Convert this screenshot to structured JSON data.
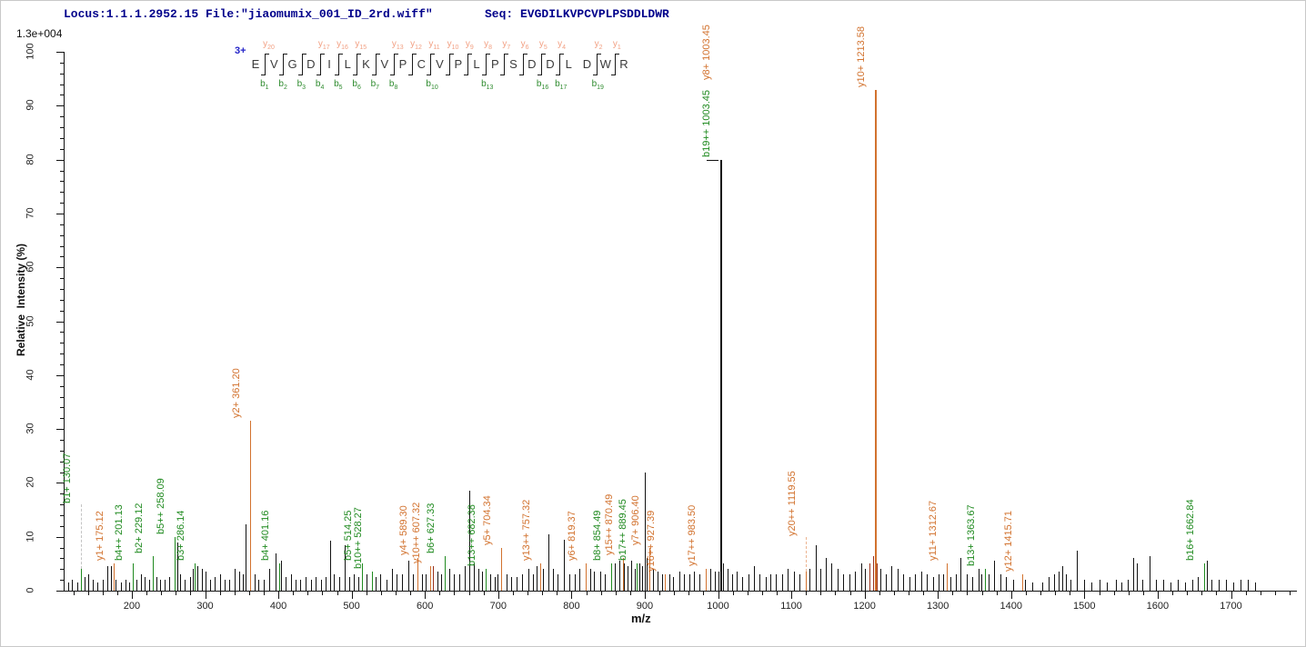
{
  "header": {
    "locus_file": "Locus:1.1.1.2952.15 File:\"jiaomumix_001_ID_2rd.wiff\"",
    "seq_text": "Seq: EVGDILKVPCVPLPSDDLDWR"
  },
  "colors": {
    "b_ion": "#1f8a1f",
    "y_ion": "#d2722e",
    "y_annotation": "#f2a083",
    "b_annotation": "#2e8b2e",
    "peak_black": "#111111",
    "peak_overlap": "#99301a",
    "header_navy": "#00008b",
    "dash_gray": "#c4c4c4",
    "dash_orange": "#ecb491"
  },
  "chart_data": {
    "type": "bar",
    "subtype": "ms2-stick-spectrum",
    "title": "",
    "xlabel": "m/z",
    "ylabel": "Relative  Intensity (%)",
    "y_axis_scale_label": "1.3e+004",
    "xlim": [
      107,
      1790
    ],
    "ylim": [
      0,
      100
    ],
    "x_major_ticks": [
      200,
      300,
      400,
      500,
      600,
      700,
      800,
      900,
      1000,
      1100,
      1200,
      1300,
      1400,
      1500,
      1600,
      1700
    ],
    "x_minor_step": 20,
    "y_major_ticks": [
      0,
      10,
      20,
      30,
      40,
      50,
      60,
      70,
      80,
      90,
      100
    ],
    "y_minor_step": 2,
    "grid": false,
    "precursor": {
      "charge": "3+",
      "sequence": "EVGDILKVPCVPLPSDDLDWR"
    },
    "fragment_map": {
      "residues": [
        "E",
        "V",
        "G",
        "D",
        "I",
        "L",
        "K",
        "V",
        "P",
        "C",
        "V",
        "P",
        "L",
        "P",
        "S",
        "D",
        "D",
        "L",
        "D",
        "W",
        "R"
      ],
      "cleavages": [
        {
          "after": 1,
          "b": 1,
          "y": 20
        },
        {
          "after": 2,
          "b": 2
        },
        {
          "after": 3,
          "b": 3
        },
        {
          "after": 4,
          "b": 4,
          "y": 17
        },
        {
          "after": 5,
          "b": 5,
          "y": 16
        },
        {
          "after": 6,
          "b": 6,
          "y": 15
        },
        {
          "after": 7,
          "b": 7
        },
        {
          "after": 8,
          "b": 8,
          "y": 13
        },
        {
          "after": 9,
          "y": 12
        },
        {
          "after": 10,
          "b": 10,
          "y": 11
        },
        {
          "after": 11,
          "y": 10
        },
        {
          "after": 12,
          "y": 9
        },
        {
          "after": 13,
          "b": 13,
          "y": 8
        },
        {
          "after": 14,
          "y": 7
        },
        {
          "after": 15,
          "y": 6
        },
        {
          "after": 16,
          "b": 16,
          "y": 5
        },
        {
          "after": 17,
          "b": 17,
          "y": 4
        },
        {
          "after": 19,
          "b": 19,
          "y": 2
        },
        {
          "after": 20,
          "y": 1
        }
      ]
    },
    "labeled_peaks": [
      {
        "mz": 130.07,
        "intensity": 4,
        "ion": "b",
        "label": "b1+ 130.07",
        "dashed": true,
        "label_from_pct": 16
      },
      {
        "mz": 175.12,
        "intensity": 5,
        "ion": "y",
        "label": "y1+ 175.12"
      },
      {
        "mz": 201.13,
        "intensity": 5,
        "ion": "b",
        "label": "b4++ 201.13"
      },
      {
        "mz": 229.12,
        "intensity": 6.5,
        "ion": "b",
        "label": "b2+ 229.12"
      },
      {
        "mz": 258.09,
        "intensity": 10,
        "ion": "b",
        "label": "b5++ 258.09"
      },
      {
        "mz": 286.14,
        "intensity": 5,
        "ion": "b",
        "label": "b3+ 286.14"
      },
      {
        "mz": 361.2,
        "intensity": 31.5,
        "ion": "y",
        "label": "y2+ 361.20"
      },
      {
        "mz": 401.16,
        "intensity": 5,
        "ion": "b",
        "label": "b4+ 401.16"
      },
      {
        "mz": 514.25,
        "intensity": 5,
        "ion": "b",
        "label": "b5+ 514.25"
      },
      {
        "mz": 528.27,
        "intensity": 3.5,
        "ion": "b",
        "label": "b10++ 528.27"
      },
      {
        "mz": 589.3,
        "intensity": 6,
        "ion": "y",
        "label": "y4+ 589.30"
      },
      {
        "mz": 607.32,
        "intensity": 4.5,
        "ion": "y",
        "label": "y10++ 607.32"
      },
      {
        "mz": 627.33,
        "intensity": 6.5,
        "ion": "b",
        "label": "b6+ 627.33"
      },
      {
        "mz": 682.38,
        "intensity": 4,
        "ion": "b",
        "label": "b13++ 682.38"
      },
      {
        "mz": 704.34,
        "intensity": 8,
        "ion": "y",
        "label": "y5+ 704.34"
      },
      {
        "mz": 757.32,
        "intensity": 5,
        "ion": "y",
        "label": "y13++ 757.32"
      },
      {
        "mz": 819.37,
        "intensity": 5,
        "ion": "y",
        "label": "y6+ 819.37"
      },
      {
        "mz": 854.49,
        "intensity": 5,
        "ion": "b",
        "label": "b8+ 854.49"
      },
      {
        "mz": 870.49,
        "intensity": 6,
        "ion": "y",
        "label": "y15++ 870.49"
      },
      {
        "mz": 889.45,
        "intensity": 5,
        "ion": "b",
        "label": "b17++ 889.45"
      },
      {
        "mz": 906.4,
        "intensity": 8,
        "ion": "y",
        "label": "y7+ 906.40"
      },
      {
        "mz": 927.39,
        "intensity": 3,
        "ion": "y",
        "label": "y16++ 927.39"
      },
      {
        "mz": 983.5,
        "intensity": 4,
        "ion": "y",
        "label": "y17++ 983.50"
      },
      {
        "mz": 1003.45,
        "intensity": 80,
        "ion": "b",
        "label": "b19++ 1003.45",
        "peak_color": "black",
        "cap": true
      },
      {
        "mz": 1003.45,
        "intensity": 80,
        "ion": "y",
        "label": "y8+ 1003.45",
        "draw_peak": false,
        "stack_offset": 88
      },
      {
        "mz": 1119.55,
        "intensity": 3.5,
        "ion": "y",
        "label": "y20++ 1119.55",
        "dashed": true,
        "label_from_pct": 10
      },
      {
        "mz": 1213.58,
        "intensity": 93,
        "ion": "y",
        "label": "y10+ 1213.58"
      },
      {
        "mz": 1312.67,
        "intensity": 5,
        "ion": "y",
        "label": "y11+ 1312.67"
      },
      {
        "mz": 1363.67,
        "intensity": 4,
        "ion": "b",
        "label": "b13+ 1363.67"
      },
      {
        "mz": 1415.71,
        "intensity": 3,
        "ion": "y",
        "label": "y12+ 1415.71"
      },
      {
        "mz": 1662.84,
        "intensity": 5,
        "ion": "b",
        "label": "b16+ 1662.84"
      }
    ],
    "overlap_peaks": [
      [
        611,
        4.5
      ],
      [
        1207,
        5
      ],
      [
        1211,
        6.5
      ],
      [
        1216,
        5
      ]
    ],
    "unlabeled_peaks": [
      [
        113,
        1.5
      ],
      [
        118,
        2
      ],
      [
        126,
        1.5
      ],
      [
        136,
        2.5
      ],
      [
        141,
        3
      ],
      [
        147,
        2
      ],
      [
        153,
        1.5
      ],
      [
        160,
        2
      ],
      [
        167,
        4.5
      ],
      [
        171,
        4.5
      ],
      [
        178,
        2
      ],
      [
        185,
        1.5
      ],
      [
        191,
        2
      ],
      [
        196,
        1.5
      ],
      [
        206,
        2
      ],
      [
        212,
        3
      ],
      [
        217,
        2.5
      ],
      [
        224,
        2
      ],
      [
        233,
        2.5
      ],
      [
        239,
        2
      ],
      [
        245,
        2
      ],
      [
        251,
        2.5
      ],
      [
        262,
        9
      ],
      [
        266,
        3
      ],
      [
        272,
        2
      ],
      [
        279,
        2.5
      ],
      [
        283,
        4
      ],
      [
        289,
        4.5
      ],
      [
        295,
        4
      ],
      [
        301,
        3.5
      ],
      [
        307,
        2
      ],
      [
        313,
        2.5
      ],
      [
        320,
        3
      ],
      [
        327,
        2
      ],
      [
        333,
        2
      ],
      [
        340,
        4
      ],
      [
        346,
        3.5
      ],
      [
        352,
        3
      ],
      [
        355,
        12.3
      ],
      [
        367,
        3
      ],
      [
        373,
        2
      ],
      [
        380,
        2
      ],
      [
        388,
        4
      ],
      [
        396,
        7
      ],
      [
        404,
        5.5
      ],
      [
        410,
        2.5
      ],
      [
        417,
        3
      ],
      [
        423,
        2
      ],
      [
        430,
        2
      ],
      [
        437,
        2.5
      ],
      [
        444,
        2
      ],
      [
        451,
        2.5
      ],
      [
        458,
        2
      ],
      [
        464,
        2.5
      ],
      [
        470,
        9.3
      ],
      [
        476,
        3
      ],
      [
        483,
        2.5
      ],
      [
        490,
        8.5
      ],
      [
        497,
        2.5
      ],
      [
        503,
        3
      ],
      [
        509,
        2.5
      ],
      [
        520,
        3
      ],
      [
        533,
        2.5
      ],
      [
        539,
        3
      ],
      [
        547,
        2
      ],
      [
        555,
        4
      ],
      [
        561,
        3
      ],
      [
        569,
        3
      ],
      [
        577,
        5.5
      ],
      [
        583,
        3
      ],
      [
        596,
        3
      ],
      [
        601,
        3
      ],
      [
        617,
        3.5
      ],
      [
        622,
        3
      ],
      [
        633,
        4
      ],
      [
        639,
        3
      ],
      [
        647,
        3
      ],
      [
        654,
        4.5
      ],
      [
        661,
        18.5
      ],
      [
        667,
        5
      ],
      [
        673,
        4
      ],
      [
        678,
        3.5
      ],
      [
        689,
        3
      ],
      [
        695,
        2.5
      ],
      [
        699,
        3
      ],
      [
        711,
        3
      ],
      [
        717,
        2.5
      ],
      [
        725,
        2.5
      ],
      [
        733,
        3
      ],
      [
        741,
        4
      ],
      [
        747,
        3
      ],
      [
        752,
        4.5
      ],
      [
        761,
        4
      ],
      [
        769,
        10.5
      ],
      [
        775,
        4
      ],
      [
        781,
        3
      ],
      [
        789,
        9.5
      ],
      [
        797,
        3
      ],
      [
        805,
        3
      ],
      [
        811,
        4
      ],
      [
        825,
        4
      ],
      [
        831,
        3.5
      ],
      [
        839,
        3.5
      ],
      [
        845,
        3
      ],
      [
        859,
        5
      ],
      [
        865,
        5.5
      ],
      [
        872,
        5
      ],
      [
        876,
        4.5
      ],
      [
        881,
        5.5
      ],
      [
        886,
        4
      ],
      [
        892,
        5
      ],
      [
        896,
        4.5
      ],
      [
        900,
        22
      ],
      [
        903,
        6
      ],
      [
        911,
        4
      ],
      [
        917,
        3.5
      ],
      [
        923,
        3
      ],
      [
        933,
        3
      ],
      [
        939,
        2.5
      ],
      [
        947,
        3.5
      ],
      [
        953,
        3
      ],
      [
        961,
        3
      ],
      [
        967,
        3.5
      ],
      [
        975,
        3
      ],
      [
        989,
        4
      ],
      [
        995,
        3.5
      ],
      [
        1000,
        3.5
      ],
      [
        1007,
        5
      ],
      [
        1013,
        4
      ],
      [
        1019,
        3
      ],
      [
        1025,
        3.5
      ],
      [
        1033,
        2.5
      ],
      [
        1041,
        3
      ],
      [
        1049,
        4.5
      ],
      [
        1057,
        3
      ],
      [
        1065,
        2.5
      ],
      [
        1071,
        3
      ],
      [
        1079,
        3
      ],
      [
        1087,
        3
      ],
      [
        1095,
        4
      ],
      [
        1103,
        3.5
      ],
      [
        1111,
        3
      ],
      [
        1125,
        4
      ],
      [
        1133,
        8.5
      ],
      [
        1139,
        4
      ],
      [
        1147,
        6
      ],
      [
        1155,
        5
      ],
      [
        1163,
        4
      ],
      [
        1171,
        3
      ],
      [
        1179,
        3
      ],
      [
        1187,
        3.5
      ],
      [
        1195,
        5
      ],
      [
        1201,
        4
      ],
      [
        1222,
        4
      ],
      [
        1229,
        3
      ],
      [
        1237,
        4.5
      ],
      [
        1245,
        4
      ],
      [
        1253,
        3
      ],
      [
        1261,
        2.5
      ],
      [
        1269,
        3
      ],
      [
        1277,
        3.5
      ],
      [
        1285,
        3
      ],
      [
        1293,
        2.5
      ],
      [
        1301,
        3
      ],
      [
        1307,
        3
      ],
      [
        1317,
        2.5
      ],
      [
        1325,
        3
      ],
      [
        1331,
        6
      ],
      [
        1339,
        3
      ],
      [
        1347,
        2.5
      ],
      [
        1355,
        4
      ],
      [
        1359,
        3
      ],
      [
        1369,
        3
      ],
      [
        1377,
        5.5
      ],
      [
        1385,
        3
      ],
      [
        1393,
        2.5
      ],
      [
        1403,
        2
      ],
      [
        1419,
        2
      ],
      [
        1429,
        1.5
      ],
      [
        1443,
        1.5
      ],
      [
        1451,
        2.5
      ],
      [
        1459,
        3
      ],
      [
        1465,
        3.5
      ],
      [
        1470,
        4.5
      ],
      [
        1475,
        3
      ],
      [
        1481,
        2
      ],
      [
        1489,
        7.5
      ],
      [
        1499,
        2
      ],
      [
        1509,
        1.5
      ],
      [
        1521,
        2
      ],
      [
        1531,
        1.5
      ],
      [
        1543,
        2
      ],
      [
        1551,
        1.5
      ],
      [
        1559,
        2
      ],
      [
        1566,
        6
      ],
      [
        1571,
        5
      ],
      [
        1579,
        2
      ],
      [
        1589,
        6.5
      ],
      [
        1597,
        2
      ],
      [
        1607,
        2
      ],
      [
        1617,
        1.5
      ],
      [
        1627,
        2
      ],
      [
        1637,
        1.5
      ],
      [
        1647,
        2
      ],
      [
        1655,
        2.5
      ],
      [
        1667,
        5.5
      ],
      [
        1673,
        2
      ],
      [
        1683,
        2
      ],
      [
        1693,
        2
      ],
      [
        1703,
        1.5
      ],
      [
        1713,
        2
      ],
      [
        1723,
        2
      ],
      [
        1733,
        1.5
      ]
    ]
  }
}
